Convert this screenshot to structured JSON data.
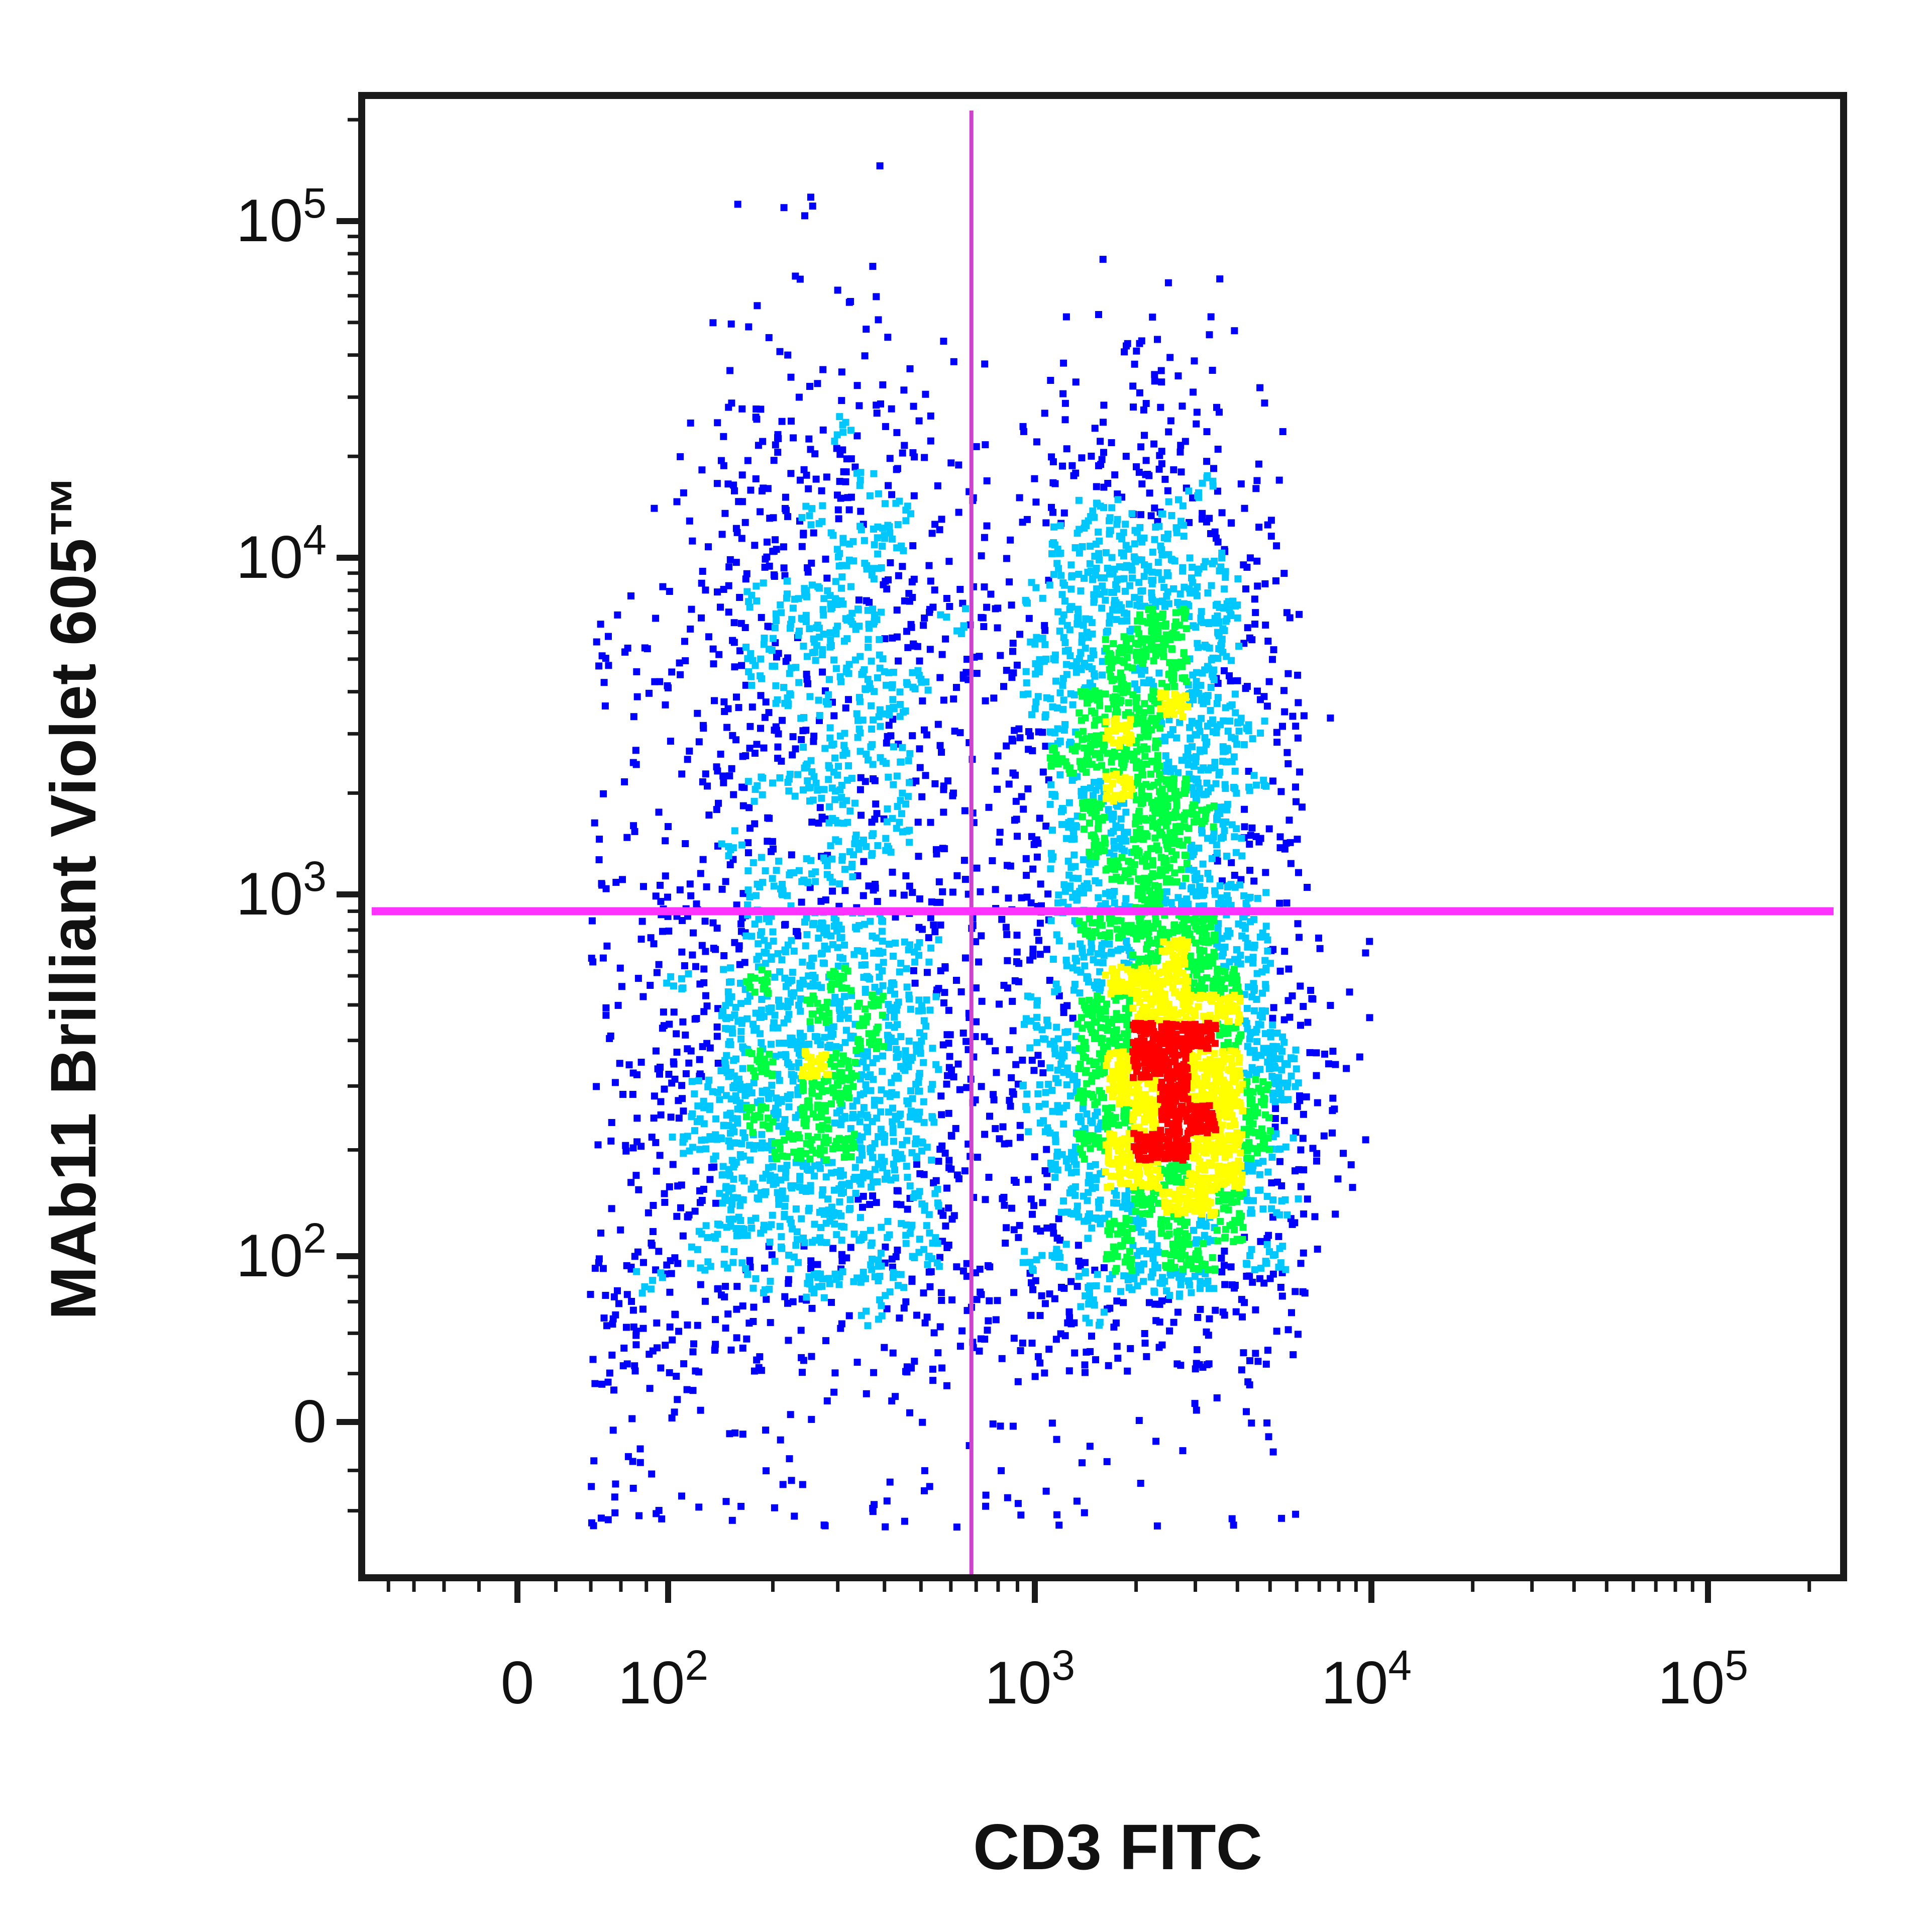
{
  "chart_data": {
    "type": "scatter",
    "subtype": "flow-cytometry-density-dot-plot",
    "xlabel": "CD3 FITC",
    "ylabel": "MAb11 Brilliant Violet 605™",
    "x_scale": "biexponential",
    "y_scale": "biexponential",
    "x_ticks": [
      {
        "value": 0,
        "label": "0"
      },
      {
        "value": 100,
        "label": "10",
        "sup": "2"
      },
      {
        "value": 1000,
        "label": "10",
        "sup": "3"
      },
      {
        "value": 10000,
        "label": "10",
        "sup": "4"
      },
      {
        "value": 100000,
        "label": "10",
        "sup": "5"
      }
    ],
    "y_ticks": [
      {
        "value": 0,
        "label": "0"
      },
      {
        "value": 100,
        "label": "10",
        "sup": "2"
      },
      {
        "value": 1000,
        "label": "10",
        "sup": "3"
      },
      {
        "value": 10000,
        "label": "10",
        "sup": "4"
      },
      {
        "value": 100000,
        "label": "10",
        "sup": "5"
      }
    ],
    "xlim": [
      -100,
      250000
    ],
    "ylim": [
      -60,
      250000
    ],
    "quadrant_gates": {
      "x": 680,
      "y": 900
    },
    "populations": [
      {
        "name": "CD3+ MAb11- cluster",
        "x_center": 2600,
        "y_center": 280,
        "x_spread": 0.18,
        "y_spread": 0.28,
        "count": 2600
      },
      {
        "name": "CD3+ MAb11+ cluster",
        "x_center": 2100,
        "y_center": 3000,
        "x_spread": 0.18,
        "y_spread": 0.45,
        "count": 2000
      },
      {
        "name": "CD3- MAb11- cluster",
        "x_center": 260,
        "y_center": 280,
        "x_spread": 0.22,
        "y_spread": 0.3,
        "count": 1500
      },
      {
        "name": "CD3- MAb11+ cluster",
        "x_center": 280,
        "y_center": 5000,
        "x_spread": 0.2,
        "y_spread": 0.45,
        "count": 900
      }
    ],
    "density_colors": [
      "#0000ff",
      "#00c8ff",
      "#00ff40",
      "#ffff00",
      "#ff0000"
    ],
    "gate_colors": {
      "vertical": "#cc44cc",
      "horizontal": "#ff33ff"
    },
    "grid": false,
    "legend": "none"
  }
}
